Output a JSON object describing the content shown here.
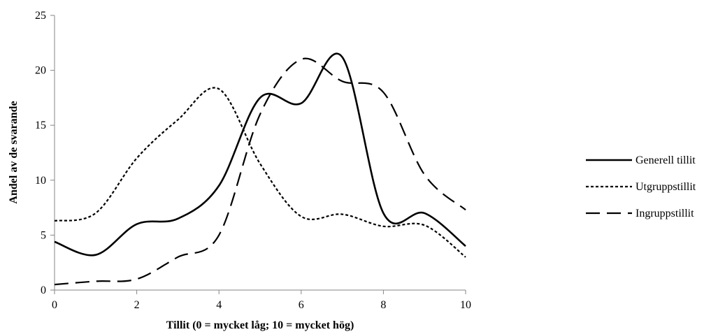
{
  "chart_data": {
    "type": "line",
    "title": "",
    "xlabel": "Tillit (0 = mycket låg; 10 = mycket hög)",
    "ylabel": "Andel av de svarande",
    "xlim": [
      0,
      10
    ],
    "ylim": [
      0,
      25
    ],
    "xticks": [
      "0",
      "2",
      "4",
      "6",
      "8",
      "10"
    ],
    "yticks": [
      "0",
      "5",
      "10",
      "15",
      "20",
      "25"
    ],
    "grid": false,
    "legend_position": "right",
    "x": [
      0,
      1,
      2,
      3,
      4,
      5,
      6,
      7,
      8,
      9,
      10
    ],
    "series": [
      {
        "name": "Generell tillit",
        "style": "solid",
        "values": [
          4.4,
          3.2,
          6.0,
          6.5,
          9.5,
          17.5,
          17.0,
          21.2,
          7.0,
          7.0,
          4.0
        ]
      },
      {
        "name": "Utgruppstillit",
        "style": "dotted",
        "values": [
          6.3,
          7.0,
          12.0,
          15.5,
          18.3,
          11.5,
          6.7,
          6.9,
          5.8,
          5.9,
          3.0
        ]
      },
      {
        "name": "Ingruppstillit",
        "style": "dashed",
        "values": [
          0.5,
          0.8,
          1.0,
          3.0,
          5.0,
          16.0,
          21.0,
          19.0,
          18.0,
          10.5,
          7.3
        ]
      }
    ],
    "colors": {
      "line": "#000000",
      "axis": "#868686"
    }
  }
}
